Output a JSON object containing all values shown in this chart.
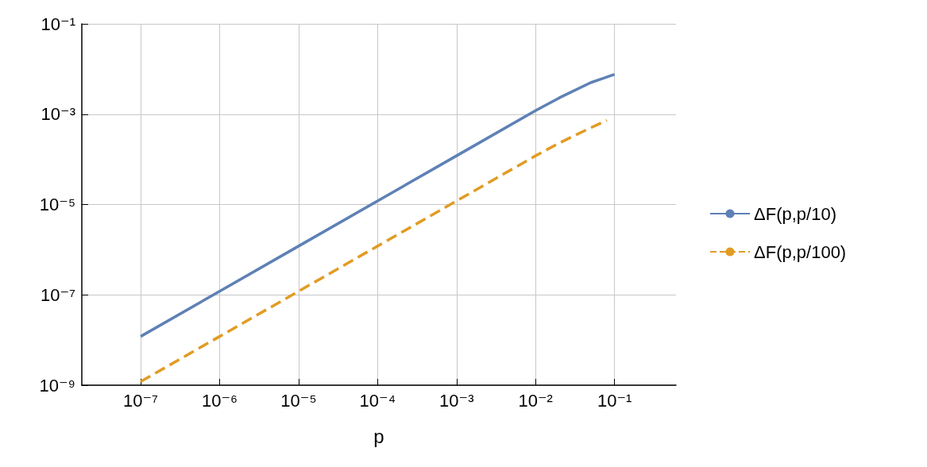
{
  "chart_data": {
    "type": "line",
    "xlabel": "p",
    "log": "xy",
    "grid": true,
    "legend": "right",
    "xlim": [
      1.8e-08,
      0.6
    ],
    "ylim": [
      1e-09,
      0.1
    ],
    "xticks": [
      {
        "value": 1e-07,
        "label": "10⁻⁷"
      },
      {
        "value": 1e-06,
        "label": "10⁻⁶"
      },
      {
        "value": 1e-05,
        "label": "10⁻⁵"
      },
      {
        "value": 0.0001,
        "label": "10⁻⁴"
      },
      {
        "value": 0.001,
        "label": "10⁻³"
      },
      {
        "value": 0.01,
        "label": "10⁻²"
      },
      {
        "value": 0.1,
        "label": "10⁻¹"
      }
    ],
    "yticks": [
      {
        "value": 1e-09,
        "label": "10⁻⁹"
      },
      {
        "value": 1e-07,
        "label": "10⁻⁷"
      },
      {
        "value": 1e-05,
        "label": "10⁻⁵"
      },
      {
        "value": 0.001,
        "label": "10⁻³"
      },
      {
        "value": 0.1,
        "label": "10⁻¹"
      }
    ],
    "series": [
      {
        "name": "ΔF(p,p/10)",
        "color": "#5e81b5",
        "line_style": "solid",
        "x": [
          1e-07,
          1e-06,
          1e-05,
          0.0001,
          0.001,
          0.01,
          0.02,
          0.05,
          0.1
        ],
        "values": [
          1.2e-08,
          1.2e-07,
          1.2e-06,
          1.2e-05,
          0.00012,
          0.0012,
          0.0023,
          0.005,
          0.0076
        ]
      },
      {
        "name": "ΔF(p,p/100)",
        "color": "#e19c24",
        "line_style": "dashed",
        "x": [
          1e-07,
          1e-06,
          1e-05,
          0.0001,
          0.001,
          0.01,
          0.02,
          0.05,
          0.08
        ],
        "values": [
          1.2e-09,
          1.2e-08,
          1.2e-07,
          1.2e-06,
          1.2e-05,
          0.00012,
          0.00023,
          0.0005,
          0.00073
        ]
      }
    ]
  }
}
